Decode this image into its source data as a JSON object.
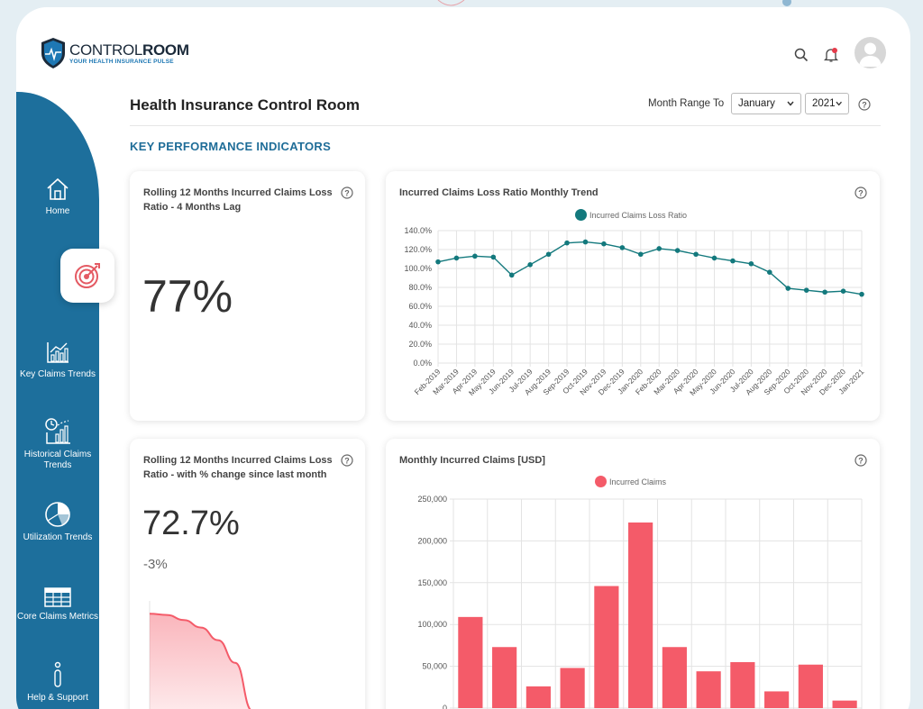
{
  "app": {
    "logo_title_light": "CONTROL",
    "logo_title_bold": "ROOM",
    "logo_subtitle": "YOUR HEALTH INSURANCE PULSE"
  },
  "header": {
    "search_icon": "search-icon",
    "notification_icon": "bell-icon",
    "avatar_icon": "user-avatar"
  },
  "sidebar": {
    "items": [
      {
        "label": "Home",
        "icon": "home-icon"
      },
      {
        "label": "",
        "icon": "target-icon",
        "active": true
      },
      {
        "label": "Key Claims Trends",
        "icon": "line-chart-icon"
      },
      {
        "label": "Historical Claims Trends",
        "icon": "historical-chart-icon"
      },
      {
        "label": "Utilization Trends",
        "icon": "pie-chart-icon"
      },
      {
        "label": "Core Claims Metrics",
        "icon": "table-icon"
      },
      {
        "label": "Help & Support",
        "icon": "info-icon"
      }
    ]
  },
  "page": {
    "title": "Health Insurance Control Room",
    "range_label": "Month Range To",
    "month_value": "January",
    "year_value": "2021",
    "section_title": "KEY PERFORMANCE INDICATORS"
  },
  "cards": {
    "kpi1": {
      "title": "Rolling 12 Months Incurred Claims Loss Ratio - 4 Months Lag",
      "value": "77%"
    },
    "kpi2": {
      "title": "Rolling 12 Months Incurred Claims Loss Ratio - with % change since last month",
      "value": "72.7%",
      "change": "-3%"
    },
    "trend": {
      "title": "Incurred Claims Loss Ratio Monthly Trend"
    },
    "monthly": {
      "title": "Monthly Incurred Claims [USD]"
    }
  },
  "colors": {
    "primary": "#1d6f9c",
    "teal": "#13797d",
    "red": "#f45b69"
  },
  "chart_data": [
    {
      "type": "line",
      "title": "Incurred Claims Loss Ratio Monthly Trend",
      "series": [
        {
          "name": "Incurred Claims Loss Ratio",
          "color": "#13797d",
          "values": [
            107,
            111,
            113,
            112,
            93,
            104,
            115,
            127,
            128,
            126,
            122,
            115,
            121,
            119,
            115,
            111,
            108,
            105,
            96,
            79,
            77,
            75,
            76,
            72.7
          ]
        }
      ],
      "categories": [
        "Feb-2019",
        "Mar-2019",
        "Apr-2019",
        "May-2019",
        "Jun-2019",
        "Jul-2019",
        "Aug-2019",
        "Sep-2019",
        "Oct-2019",
        "Nov-2019",
        "Dec-2019",
        "Jan-2020",
        "Feb-2020",
        "Mar-2020",
        "Apr-2020",
        "May-2020",
        "Jun-2020",
        "Jul-2020",
        "Aug-2020",
        "Sep-2020",
        "Oct-2020",
        "Nov-2020",
        "Dec-2020",
        "Jan-2021"
      ],
      "yticks": [
        "0.0%",
        "20.0%",
        "40.0%",
        "60.0%",
        "80.0%",
        "100.0%",
        "120.0%",
        "140.0%"
      ],
      "ylim": [
        0,
        140
      ],
      "legend": "top",
      "grid": true
    },
    {
      "type": "bar",
      "title": "Monthly Incurred Claims [USD]",
      "series": [
        {
          "name": "Incurred Claims",
          "color": "#f45b69",
          "values": [
            109000,
            73000,
            26000,
            48000,
            146000,
            222000,
            73000,
            44000,
            55000,
            20000,
            52000,
            9000
          ]
        }
      ],
      "yticks": [
        "0",
        "50,000",
        "100,000",
        "150,000",
        "200,000",
        "250,000"
      ],
      "ylim": [
        0,
        250000
      ],
      "legend": "top",
      "grid": true
    },
    {
      "type": "area",
      "title": "",
      "series": [
        {
          "name": "",
          "color": "#f45b69",
          "values": [
            97,
            96,
            92,
            86,
            76,
            58,
            20,
            0
          ]
        }
      ],
      "ylim": [
        0,
        100
      ]
    }
  ]
}
